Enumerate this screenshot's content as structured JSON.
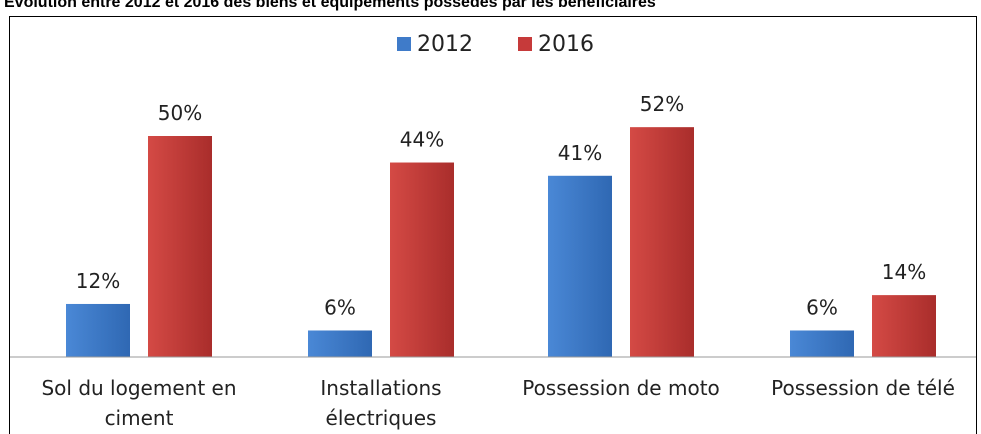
{
  "title": "Evolution entre 2012 et 2016 des biens et équipements possédés par les bénéficiaires",
  "chart_data": {
    "type": "bar",
    "title": "Evolution entre 2012 et 2016 des biens et équipements possédés par les bénéficiaires",
    "categories": [
      [
        "Sol du logement en",
        "ciment"
      ],
      [
        "Installations",
        "électriques"
      ],
      [
        "Possession de moto"
      ],
      [
        "Possession de télé"
      ]
    ],
    "series": [
      {
        "name": "2012",
        "values": [
          12,
          6,
          41,
          6
        ],
        "labels": [
          "12%",
          "6%",
          "41%",
          "6%"
        ],
        "color": "#3f7bc9"
      },
      {
        "name": "2016",
        "values": [
          50,
          44,
          52,
          14
        ],
        "labels": [
          "50%",
          "44%",
          "52%",
          "14%"
        ],
        "color": "#c63a3a"
      }
    ],
    "ylim": [
      0,
      60
    ],
    "legend": "top-center",
    "grid": false
  }
}
